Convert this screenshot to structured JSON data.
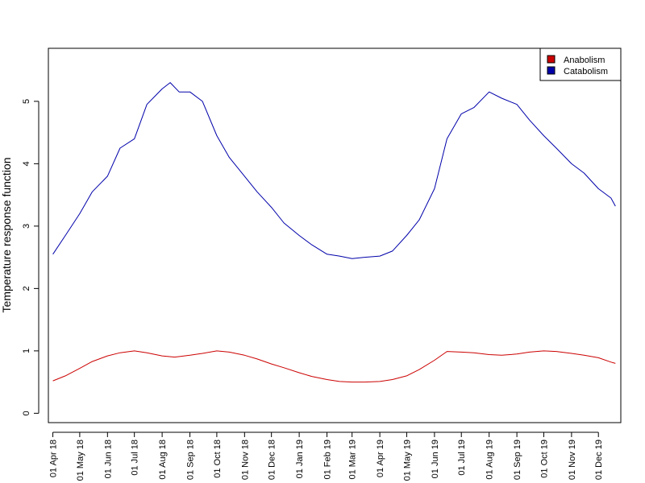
{
  "chart_data": {
    "type": "line",
    "title": "",
    "xlabel": "",
    "ylabel": "Temperature response function",
    "ylim": [
      -0.15,
      5.85
    ],
    "yticks": [
      0,
      1,
      2,
      3,
      4,
      5
    ],
    "xlim": [
      "2018-03-27",
      "2019-12-26"
    ],
    "x_ticks": [
      {
        "date": "2018-04-01",
        "label": "01 Apr 18"
      },
      {
        "date": "2018-05-01",
        "label": "01 May 18"
      },
      {
        "date": "2018-06-01",
        "label": "01 Jun 18"
      },
      {
        "date": "2018-07-01",
        "label": "01 Jul 18"
      },
      {
        "date": "2018-08-01",
        "label": "01 Aug 18"
      },
      {
        "date": "2018-09-01",
        "label": "01 Sep 18"
      },
      {
        "date": "2018-10-01",
        "label": "01 Oct 18"
      },
      {
        "date": "2018-11-01",
        "label": "01 Nov 18"
      },
      {
        "date": "2018-12-01",
        "label": "01 Dec 18"
      },
      {
        "date": "2019-01-01",
        "label": "01 Jan 19"
      },
      {
        "date": "2019-02-01",
        "label": "01 Feb 19"
      },
      {
        "date": "2019-03-01",
        "label": "01 Mar 19"
      },
      {
        "date": "2019-04-01",
        "label": "01 Apr 19"
      },
      {
        "date": "2019-05-01",
        "label": "01 May 19"
      },
      {
        "date": "2019-06-01",
        "label": "01 Jun 19"
      },
      {
        "date": "2019-07-01",
        "label": "01 Jul 19"
      },
      {
        "date": "2019-08-01",
        "label": "01 Aug 19"
      },
      {
        "date": "2019-09-01",
        "label": "01 Sep 19"
      },
      {
        "date": "2019-10-01",
        "label": "01 Oct 19"
      },
      {
        "date": "2019-11-01",
        "label": "01 Nov 19"
      },
      {
        "date": "2019-12-01",
        "label": "01 Dec 19"
      }
    ],
    "legend": {
      "position": "top-right",
      "box": true
    },
    "grid": false,
    "series": [
      {
        "name": "Anabolism",
        "color": "#cc0000",
        "points": [
          [
            "2018-04-01",
            0.52
          ],
          [
            "2018-04-15",
            0.6
          ],
          [
            "2018-05-01",
            0.72
          ],
          [
            "2018-05-15",
            0.83
          ],
          [
            "2018-06-01",
            0.92
          ],
          [
            "2018-06-15",
            0.97
          ],
          [
            "2018-07-01",
            1.0
          ],
          [
            "2018-07-15",
            0.97
          ],
          [
            "2018-08-01",
            0.92
          ],
          [
            "2018-08-15",
            0.9
          ],
          [
            "2018-09-01",
            0.93
          ],
          [
            "2018-09-15",
            0.96
          ],
          [
            "2018-10-01",
            1.0
          ],
          [
            "2018-10-15",
            0.98
          ],
          [
            "2018-11-01",
            0.93
          ],
          [
            "2018-11-15",
            0.87
          ],
          [
            "2018-12-01",
            0.79
          ],
          [
            "2018-12-15",
            0.73
          ],
          [
            "2019-01-01",
            0.65
          ],
          [
            "2019-01-15",
            0.59
          ],
          [
            "2019-02-01",
            0.54
          ],
          [
            "2019-02-15",
            0.51
          ],
          [
            "2019-03-01",
            0.5
          ],
          [
            "2019-03-15",
            0.5
          ],
          [
            "2019-04-01",
            0.51
          ],
          [
            "2019-04-15",
            0.54
          ],
          [
            "2019-05-01",
            0.6
          ],
          [
            "2019-05-15",
            0.7
          ],
          [
            "2019-06-01",
            0.85
          ],
          [
            "2019-06-15",
            0.99
          ],
          [
            "2019-07-01",
            0.98
          ],
          [
            "2019-07-15",
            0.97
          ],
          [
            "2019-08-01",
            0.94
          ],
          [
            "2019-08-15",
            0.93
          ],
          [
            "2019-09-01",
            0.95
          ],
          [
            "2019-09-15",
            0.98
          ],
          [
            "2019-10-01",
            1.0
          ],
          [
            "2019-10-15",
            0.99
          ],
          [
            "2019-11-01",
            0.96
          ],
          [
            "2019-11-15",
            0.93
          ],
          [
            "2019-12-01",
            0.89
          ],
          [
            "2019-12-15",
            0.82
          ],
          [
            "2019-12-20",
            0.8
          ]
        ]
      },
      {
        "name": "Catabolism",
        "color": "#0000aa",
        "points": [
          [
            "2018-04-01",
            2.55
          ],
          [
            "2018-04-15",
            2.85
          ],
          [
            "2018-05-01",
            3.2
          ],
          [
            "2018-05-15",
            3.55
          ],
          [
            "2018-06-01",
            3.8
          ],
          [
            "2018-06-15",
            4.25
          ],
          [
            "2018-07-01",
            4.4
          ],
          [
            "2018-07-15",
            4.95
          ],
          [
            "2018-08-01",
            5.2
          ],
          [
            "2018-08-10",
            5.3
          ],
          [
            "2018-08-20",
            5.15
          ],
          [
            "2018-09-01",
            5.15
          ],
          [
            "2018-09-15",
            5.0
          ],
          [
            "2018-10-01",
            4.45
          ],
          [
            "2018-10-15",
            4.1
          ],
          [
            "2018-11-01",
            3.8
          ],
          [
            "2018-11-15",
            3.55
          ],
          [
            "2018-12-01",
            3.3
          ],
          [
            "2018-12-15",
            3.05
          ],
          [
            "2019-01-01",
            2.85
          ],
          [
            "2019-01-15",
            2.7
          ],
          [
            "2019-02-01",
            2.55
          ],
          [
            "2019-02-15",
            2.52
          ],
          [
            "2019-03-01",
            2.48
          ],
          [
            "2019-03-15",
            2.5
          ],
          [
            "2019-04-01",
            2.52
          ],
          [
            "2019-04-15",
            2.6
          ],
          [
            "2019-05-01",
            2.85
          ],
          [
            "2019-05-15",
            3.1
          ],
          [
            "2019-06-01",
            3.6
          ],
          [
            "2019-06-15",
            4.4
          ],
          [
            "2019-07-01",
            4.8
          ],
          [
            "2019-07-15",
            4.9
          ],
          [
            "2019-08-01",
            5.15
          ],
          [
            "2019-08-15",
            5.05
          ],
          [
            "2019-09-01",
            4.95
          ],
          [
            "2019-09-15",
            4.7
          ],
          [
            "2019-10-01",
            4.45
          ],
          [
            "2019-10-15",
            4.25
          ],
          [
            "2019-11-01",
            4.0
          ],
          [
            "2019-11-15",
            3.85
          ],
          [
            "2019-12-01",
            3.6
          ],
          [
            "2019-12-15",
            3.45
          ],
          [
            "2019-12-20",
            3.32
          ]
        ]
      }
    ]
  }
}
